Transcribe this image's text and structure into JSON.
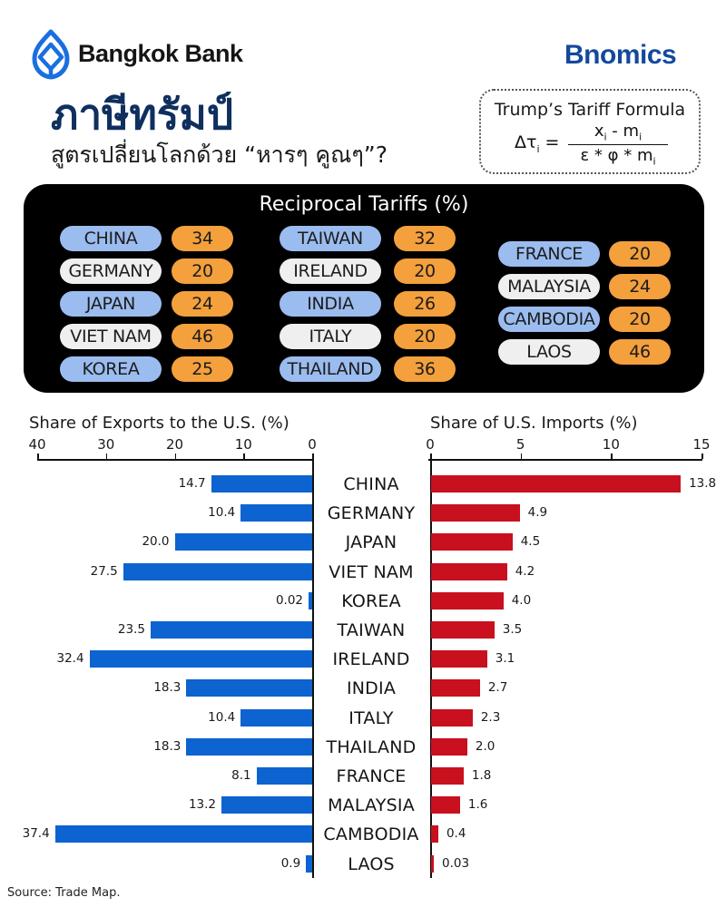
{
  "header": {
    "brand": "Bangkok Bank",
    "brand_color": "#1a6fe0",
    "series_brand": "Bnomics",
    "series_brand_color": "#13499c",
    "title": "ภาษีทรัมป์",
    "subtitle": "สูตรเปลี่ยนโลกด้วย “หารๆ คูณๆ”?"
  },
  "formula": {
    "title": "Trump’s Tariff Formula",
    "lhs": "Δτ",
    "lhs_sub": "i",
    "numerator": "x",
    "numerator_sub": "i",
    "numerator_mid": " - m",
    "numerator_sub2": "i",
    "denominator": "ε * φ * m",
    "denominator_sub": "i"
  },
  "tariffs": {
    "title": "Reciprocal Tariffs (%)",
    "items": [
      {
        "country": "CHINA",
        "rate": "34",
        "style": "blue"
      },
      {
        "country": "GERMANY",
        "rate": "20",
        "style": "white"
      },
      {
        "country": "JAPAN",
        "rate": "24",
        "style": "blue"
      },
      {
        "country": "VIET NAM",
        "rate": "46",
        "style": "white"
      },
      {
        "country": "KOREA",
        "rate": "25",
        "style": "blue"
      },
      {
        "country": "TAIWAN",
        "rate": "32",
        "style": "blue"
      },
      {
        "country": "IRELAND",
        "rate": "20",
        "style": "white"
      },
      {
        "country": "INDIA",
        "rate": "26",
        "style": "blue"
      },
      {
        "country": "ITALY",
        "rate": "20",
        "style": "white"
      },
      {
        "country": "THAILAND",
        "rate": "36",
        "style": "blue"
      },
      {
        "country": "FRANCE",
        "rate": "20",
        "style": "blue"
      },
      {
        "country": "MALAYSIA",
        "rate": "24",
        "style": "white"
      },
      {
        "country": "CAMBODIA",
        "rate": "20",
        "style": "blue"
      },
      {
        "country": "LAOS",
        "rate": "46",
        "style": "white"
      }
    ]
  },
  "source": "Source: Trade Map.",
  "chart_data": [
    {
      "type": "bar",
      "orientation": "horizontal",
      "title": "Share of Exports to the U.S. (%)",
      "xlabel": "",
      "ylabel": "",
      "xlim": [
        40,
        0
      ],
      "xticks": [
        "40",
        "30",
        "20",
        "10",
        "0"
      ],
      "reversed_axis": true,
      "color": "#0d63cf",
      "categories": [
        "CHINA",
        "GERMANY",
        "JAPAN",
        "VIET NAM",
        "KOREA",
        "TAIWAN",
        "IRELAND",
        "INDIA",
        "ITALY",
        "THAILAND",
        "FRANCE",
        "MALAYSIA",
        "CAMBODIA",
        "LAOS"
      ],
      "values": [
        14.7,
        10.4,
        20.0,
        27.5,
        0.02,
        23.5,
        32.4,
        18.3,
        10.4,
        18.3,
        8.1,
        13.2,
        37.4,
        0.9
      ],
      "labels": [
        "14.7",
        "10.4",
        "20.0",
        "27.5",
        "0.02",
        "23.5",
        "32.4",
        "18.3",
        "10.4",
        "18.3",
        "8.1",
        "13.2",
        "37.4",
        "0.9"
      ],
      "grid": false
    },
    {
      "type": "bar",
      "orientation": "horizontal",
      "title": "Share of U.S. Imports (%)",
      "xlabel": "",
      "ylabel": "",
      "xlim": [
        0,
        15
      ],
      "xticks": [
        "0",
        "5",
        "10",
        "15"
      ],
      "color": "#c8101e",
      "categories": [
        "CHINA",
        "GERMANY",
        "JAPAN",
        "VIET NAM",
        "KOREA",
        "TAIWAN",
        "IRELAND",
        "INDIA",
        "ITALY",
        "THAILAND",
        "FRANCE",
        "MALAYSIA",
        "CAMBODIA",
        "LAOS"
      ],
      "values": [
        13.8,
        4.9,
        4.5,
        4.2,
        4.0,
        3.5,
        3.1,
        2.7,
        2.3,
        2.0,
        1.8,
        1.6,
        0.4,
        0.03
      ],
      "labels": [
        "13.8",
        "4.9",
        "4.5",
        "4.2",
        "4.0",
        "3.5",
        "3.1",
        "2.7",
        "2.3",
        "2.0",
        "1.8",
        "1.6",
        "0.4",
        "0.03"
      ],
      "grid": false
    }
  ]
}
